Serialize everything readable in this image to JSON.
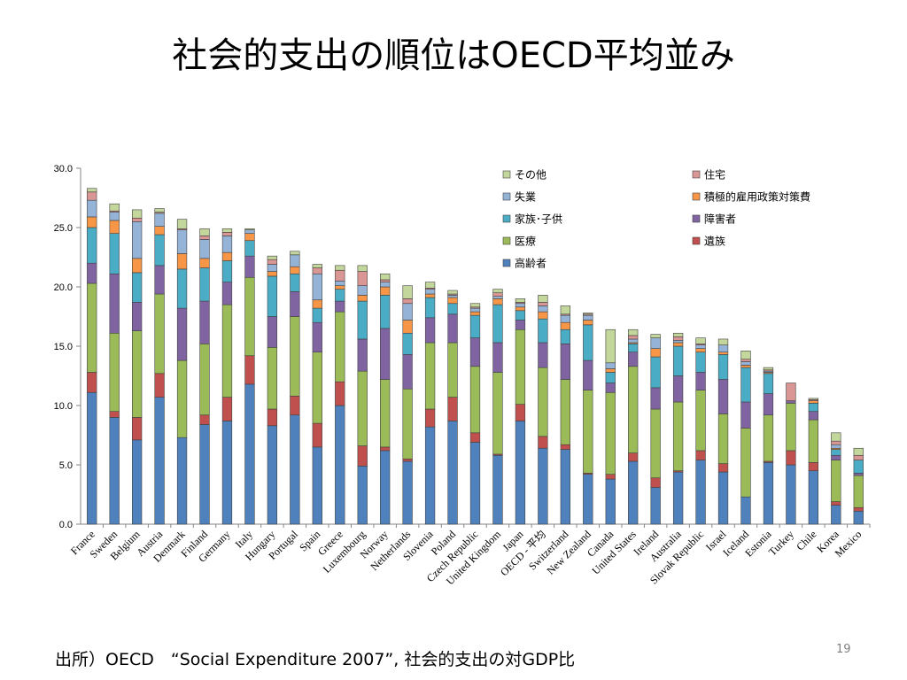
{
  "slide": {
    "title": "社会的支出の順位はOECD平均並み",
    "source": "出所）OECD　“Social Expenditure 2007”, 社会的支出の対GDP比",
    "page_number": "19"
  },
  "chart_data": {
    "type": "bar",
    "stacked": true,
    "ylim": [
      0,
      30
    ],
    "yticks": [
      "0.0",
      "5.0",
      "10.0",
      "15.0",
      "20.0",
      "25.0",
      "30.0"
    ],
    "legend_position": "top-right",
    "grid": false,
    "categories": [
      "France",
      "Sweden",
      "Belgium",
      "Austria",
      "Denmark",
      "Finland",
      "Germany",
      "Italy",
      "Hungary",
      "Portugal",
      "Spain",
      "Greece",
      "Luxembourg",
      "Norway",
      "Netherlands",
      "Slovenia",
      "Poland",
      "Czech Republic",
      "United Kingdom",
      "Japan",
      "OECD - 平均",
      "Switzerland",
      "New Zealand",
      "Canada",
      "United States",
      "Ireland",
      "Australia",
      "Slovak Republic",
      "Israel",
      "Iceland",
      "Estonia",
      "Turkey",
      "Chile",
      "Korea",
      "Mexico"
    ],
    "series": [
      {
        "name": "高齢者",
        "color": "#4F81BD",
        "values": [
          11.1,
          9.0,
          7.1,
          10.7,
          7.3,
          8.4,
          8.7,
          11.8,
          8.3,
          9.2,
          6.5,
          10.0,
          4.9,
          6.2,
          5.3,
          8.2,
          8.7,
          6.9,
          5.8,
          8.7,
          6.4,
          6.3,
          4.2,
          3.8,
          5.3,
          3.1,
          4.4,
          5.4,
          4.4,
          2.3,
          5.2,
          5.0,
          4.5,
          1.6,
          1.1
        ]
      },
      {
        "name": "遺族",
        "color": "#C0504D",
        "values": [
          1.7,
          0.5,
          1.9,
          2.0,
          0.0,
          0.8,
          2.0,
          2.4,
          1.4,
          1.6,
          2.0,
          2.0,
          1.7,
          0.3,
          0.2,
          1.5,
          2.0,
          0.8,
          0.1,
          1.4,
          1.0,
          0.4,
          0.1,
          0.4,
          0.7,
          0.8,
          0.1,
          0.8,
          0.7,
          0.0,
          0.1,
          1.2,
          0.7,
          0.3,
          0.3
        ]
      },
      {
        "name": "医療",
        "color": "#9BBB59",
        "values": [
          7.5,
          6.6,
          7.3,
          6.7,
          6.5,
          6.0,
          7.8,
          6.6,
          5.2,
          6.7,
          6.0,
          5.9,
          6.3,
          5.7,
          5.9,
          5.6,
          4.6,
          5.6,
          6.9,
          6.3,
          5.8,
          5.5,
          7.0,
          6.9,
          7.3,
          5.8,
          5.8,
          5.1,
          4.2,
          5.8,
          3.9,
          4.0,
          3.6,
          3.5,
          2.7
        ]
      },
      {
        "name": "障害者",
        "color": "#8064A2",
        "values": [
          1.7,
          5.0,
          2.4,
          2.4,
          4.4,
          3.6,
          1.9,
          1.8,
          2.6,
          2.1,
          2.5,
          0.9,
          2.7,
          4.3,
          2.9,
          2.1,
          2.4,
          2.4,
          2.5,
          0.8,
          2.1,
          3.0,
          2.5,
          0.8,
          1.2,
          1.8,
          2.2,
          1.5,
          2.9,
          2.2,
          1.8,
          0.2,
          0.7,
          0.4,
          0.2
        ]
      },
      {
        "name": "家族･子供",
        "color": "#4BACC6",
        "values": [
          3.0,
          3.4,
          2.5,
          2.6,
          3.3,
          2.8,
          1.8,
          1.3,
          3.4,
          1.5,
          1.2,
          1.0,
          3.2,
          2.8,
          1.8,
          1.7,
          0.9,
          1.9,
          3.2,
          0.8,
          2.0,
          1.2,
          3.0,
          0.9,
          0.7,
          2.6,
          2.5,
          1.7,
          2.1,
          2.9,
          1.7,
          0.0,
          0.7,
          0.5,
          1.1
        ]
      },
      {
        "name": "積極的雇用政策対策費",
        "color": "#F79646",
        "values": [
          0.9,
          1.1,
          1.2,
          0.7,
          1.3,
          0.8,
          0.7,
          0.6,
          0.4,
          0.6,
          0.7,
          0.3,
          0.5,
          0.7,
          1.1,
          0.3,
          0.5,
          0.3,
          0.5,
          0.3,
          0.6,
          0.6,
          0.4,
          0.3,
          0.1,
          0.7,
          0.3,
          0.3,
          0.2,
          0.2,
          0.1,
          0.0,
          0.2,
          0.1,
          0.0
        ]
      },
      {
        "name": "失業",
        "color": "#95B3D7",
        "values": [
          1.4,
          0.7,
          3.1,
          1.1,
          2.0,
          1.6,
          1.4,
          0.3,
          0.6,
          1.0,
          2.2,
          0.4,
          0.8,
          0.4,
          1.4,
          0.4,
          0.2,
          0.3,
          0.2,
          0.3,
          0.5,
          0.6,
          0.4,
          0.5,
          0.3,
          0.9,
          0.2,
          0.3,
          0.6,
          0.3,
          0.1,
          0.0,
          0.0,
          0.3,
          0.0
        ]
      },
      {
        "name": "住宅",
        "color": "#D99694",
        "values": [
          0.7,
          0.1,
          0.3,
          0.1,
          0.1,
          0.3,
          0.3,
          0.0,
          0.4,
          0.0,
          0.5,
          0.9,
          1.2,
          0.2,
          0.4,
          0.1,
          0.1,
          0.1,
          0.3,
          0.1,
          0.3,
          0.1,
          0.1,
          0.0,
          0.3,
          0.0,
          0.3,
          0.1,
          0.0,
          0.2,
          0.1,
          1.5,
          0.1,
          0.3,
          0.4
        ]
      },
      {
        "name": "その他",
        "color": "#C3D69B",
        "values": [
          0.3,
          0.6,
          0.7,
          0.3,
          0.8,
          0.6,
          0.3,
          0.1,
          0.3,
          0.3,
          0.3,
          0.4,
          0.5,
          0.5,
          1.1,
          0.5,
          0.3,
          0.3,
          0.3,
          0.3,
          0.6,
          0.7,
          0.1,
          2.8,
          0.5,
          0.3,
          0.3,
          0.5,
          0.5,
          0.7,
          0.2,
          0.0,
          0.1,
          0.7,
          0.6
        ]
      }
    ]
  }
}
